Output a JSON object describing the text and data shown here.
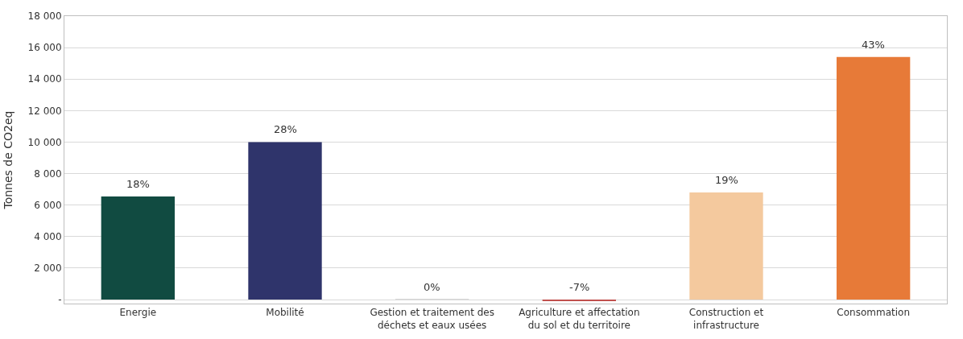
{
  "chart_data": {
    "type": "bar",
    "ylabel": "Tonnes de CO2eq",
    "categories": [
      "Energie",
      "Mobilité",
      "Gestion et traitement des déchets et eaux usées",
      "Agriculture et affectation du sol et du territoire",
      "Construction et infrastructure",
      "Consommation"
    ],
    "values": [
      6550,
      10000,
      20,
      -50,
      6800,
      15400
    ],
    "colors": [
      "#114b41",
      "#2f346b",
      "#d9d9d9",
      "#c0504d",
      "#f4c99e",
      "#e77a38"
    ],
    "annotations": [
      {
        "text": "18%",
        "x": "Energie",
        "y": 6550
      },
      {
        "text": "28%",
        "x": "Mobilité",
        "y": 10000
      },
      {
        "text": "0%",
        "x": "Gestion et traitement des déchets et eaux usées",
        "y": 20
      },
      {
        "text": "-7%",
        "x": "Agriculture et affectation du sol et du territoire",
        "y": -50
      },
      {
        "text": "19%",
        "x": "Construction et infrastructure",
        "y": 6800
      },
      {
        "text": "43%",
        "x": "Consommation",
        "y": 15400
      }
    ],
    "ylim": [
      -250,
      18000
    ],
    "yticks": [
      {
        "value": 0,
        "label": "-"
      },
      {
        "value": 2000,
        "label": "2 000"
      },
      {
        "value": 4000,
        "label": "4 000"
      },
      {
        "value": 6000,
        "label": "6 000"
      },
      {
        "value": 8000,
        "label": "8 000"
      },
      {
        "value": 10000,
        "label": "10 000"
      },
      {
        "value": 12000,
        "label": "12 000"
      },
      {
        "value": 14000,
        "label": "14 000"
      },
      {
        "value": 16000,
        "label": "16 000"
      },
      {
        "value": 18000,
        "label": "18 000"
      }
    ],
    "grid": "y"
  }
}
